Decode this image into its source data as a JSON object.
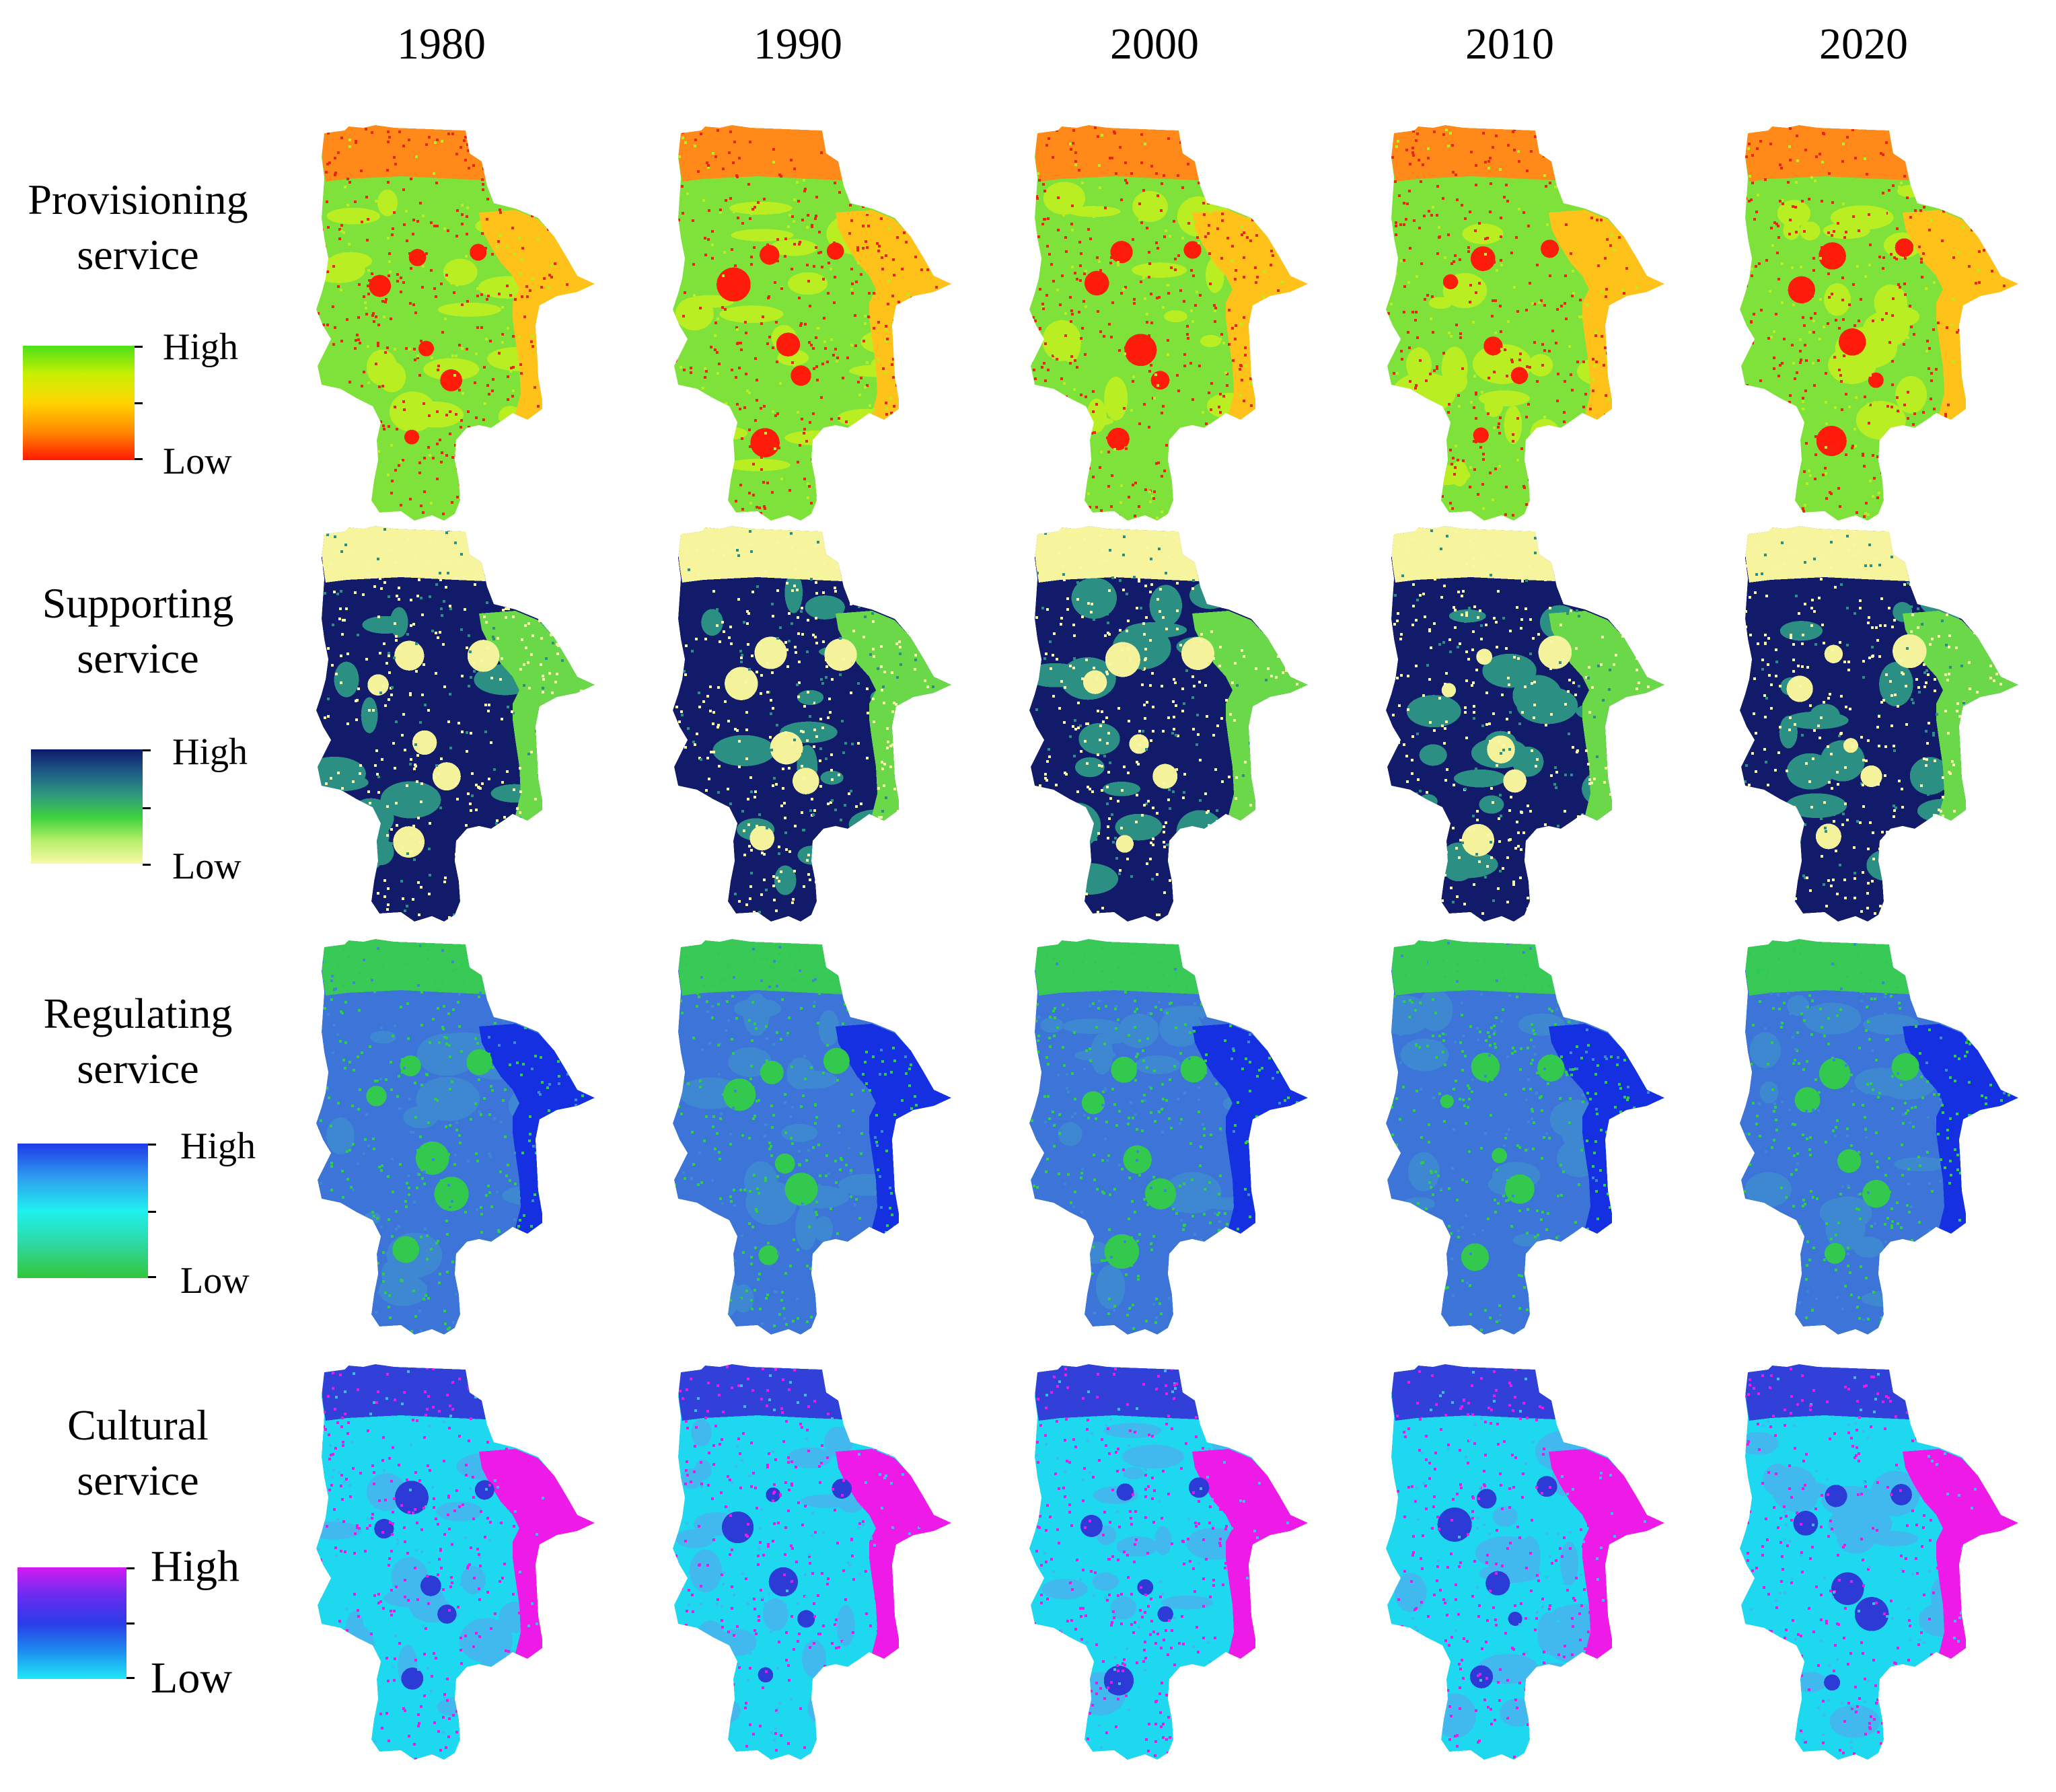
{
  "years": [
    "1980",
    "1990",
    "2000",
    "2010",
    "2020"
  ],
  "rows": [
    {
      "id": "provisioning",
      "title_line1": "Provisioning",
      "title_line2": "service",
      "legend": {
        "high": "High",
        "low": "Low",
        "colors": [
          "#4CE01A",
          "#C8F000",
          "#FFD400",
          "#FF8A00",
          "#FF1A00"
        ]
      },
      "palette": {
        "base": "#7EE23A",
        "alt": "#B9EE22",
        "coastal": "#FFC21A",
        "north": "#FF8A1A",
        "urban": "#FF1A0A",
        "speckle": "#E8280E"
      }
    },
    {
      "id": "supporting",
      "title_line1": "Supporting",
      "title_line2": "service",
      "legend": {
        "high": "High",
        "low": "Low",
        "colors": [
          "#0D1A6B",
          "#1E5C86",
          "#2E9A7E",
          "#3FD23C",
          "#B7F06A",
          "#F8F8A8"
        ]
      },
      "palette": {
        "base": "#111B69",
        "alt": "#2C8F84",
        "coastal": "#6BD84A",
        "north": "#F6F49C",
        "urban": "#F4F29A",
        "speckle": "#F8F6A8"
      }
    },
    {
      "id": "regulating",
      "title_line1": "Regulating",
      "title_line2": "service",
      "legend": {
        "high": "High",
        "low": "Low",
        "colors": [
          "#1E3AE6",
          "#2E9CF0",
          "#1FF0F0",
          "#2ED8A0",
          "#33C63A"
        ]
      },
      "palette": {
        "base": "#3C74D8",
        "alt": "#3E88D2",
        "coastal": "#1530E0",
        "north": "#39C957",
        "urban": "#33C84E",
        "speckle": "#2ECB4C"
      }
    },
    {
      "id": "cultural",
      "title_line1": "Cultural",
      "title_line2": "service",
      "legend": {
        "high": "High",
        "low": "Low",
        "colors": [
          "#D21BF2",
          "#6A2CF0",
          "#2A3CE6",
          "#1E8CF0",
          "#1FE8F6"
        ]
      },
      "palette": {
        "base": "#1ED8F0",
        "alt": "#41B8EE",
        "coastal": "#EE1AE8",
        "north": "#3040D8",
        "urban": "#2C3AD6",
        "speckle": "#E41EE6"
      }
    }
  ]
}
